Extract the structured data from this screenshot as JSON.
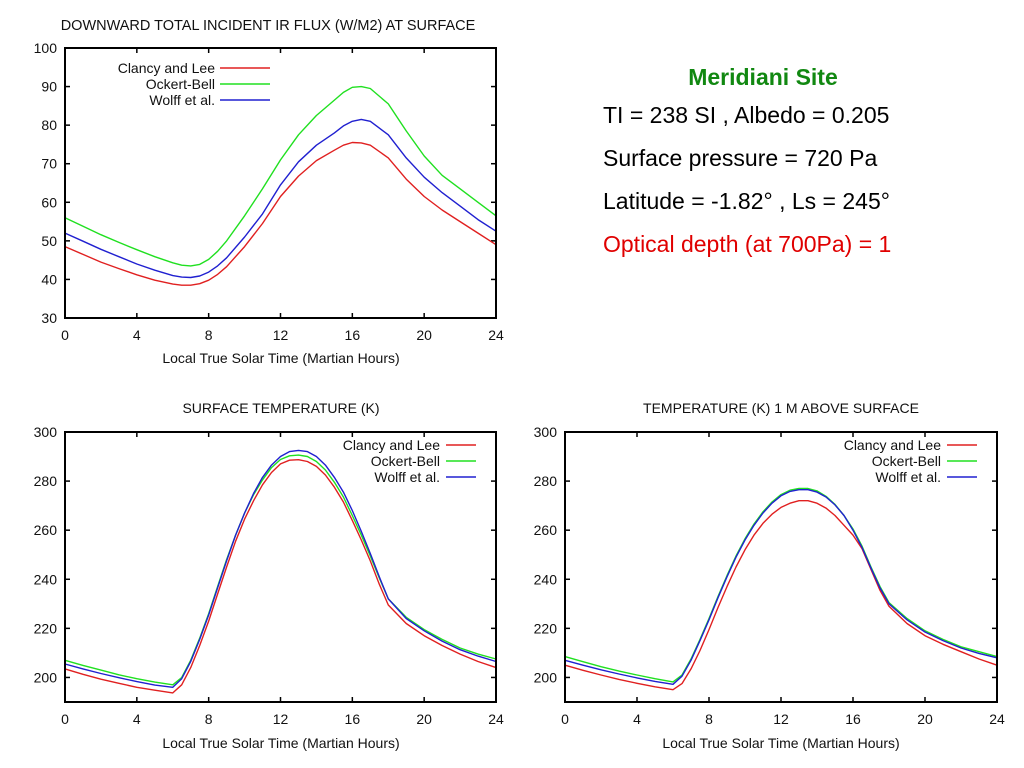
{
  "info_panel": {
    "site_name": "Meridiani Site",
    "lines": [
      "TI = 238 SI , Albedo = 0.205",
      "Surface pressure = 720 Pa",
      "Latitude = -1.82° , Ls = 245°",
      "Optical depth (at 700Pa) = 1"
    ],
    "colors": {
      "site": "#118811",
      "optical_depth": "#e00000",
      "text": "#000000"
    }
  },
  "chart_data": [
    {
      "id": "ir-flux",
      "type": "line",
      "title": "DOWNWARD TOTAL INCIDENT IR FLUX (W/M2) AT SURFACE",
      "xlabel": "Local True Solar Time (Martian Hours)",
      "ylabel": "",
      "xlim": [
        0,
        24
      ],
      "ylim": [
        30,
        100
      ],
      "xticks": [
        0,
        4,
        8,
        12,
        16,
        20,
        24
      ],
      "yticks": [
        30,
        40,
        50,
        60,
        70,
        80,
        90,
        100
      ],
      "grid": false,
      "legend_position": "top-left",
      "x": [
        0,
        1,
        2,
        3,
        4,
        5,
        6,
        6.5,
        7,
        7.5,
        8,
        8.5,
        9,
        10,
        11,
        12,
        13,
        14,
        15,
        15.5,
        16,
        16.5,
        17,
        18,
        19,
        20,
        21,
        22,
        23,
        24
      ],
      "series": [
        {
          "name": "Clancy and Lee",
          "color": "#e02020",
          "values": [
            48.5,
            46.5,
            44.5,
            42.8,
            41.2,
            39.8,
            38.8,
            38.5,
            38.5,
            38.9,
            39.8,
            41.3,
            43.3,
            48.5,
            54.5,
            61.5,
            66.8,
            70.8,
            73.5,
            74.8,
            75.5,
            75.4,
            74.8,
            71.5,
            66.0,
            61.5,
            58.0,
            55.0,
            52.0,
            49.0
          ]
        },
        {
          "name": "Ockert-Bell",
          "color": "#20e020",
          "values": [
            56.0,
            53.8,
            51.6,
            49.6,
            47.7,
            45.9,
            44.3,
            43.7,
            43.5,
            43.9,
            45.2,
            47.3,
            50.0,
            56.5,
            63.5,
            71.0,
            77.5,
            82.5,
            86.5,
            88.5,
            89.8,
            90.0,
            89.5,
            85.5,
            78.5,
            72.0,
            67.0,
            63.5,
            60.0,
            56.5
          ]
        },
        {
          "name": "Wolff et al.",
          "color": "#2020d0",
          "values": [
            52.0,
            49.9,
            47.8,
            45.9,
            44.0,
            42.4,
            41.0,
            40.6,
            40.5,
            40.9,
            41.9,
            43.5,
            45.6,
            51.0,
            57.0,
            64.5,
            70.5,
            74.8,
            78.0,
            79.8,
            81.0,
            81.5,
            81.0,
            77.5,
            71.5,
            66.5,
            62.5,
            59.0,
            55.5,
            52.5
          ]
        }
      ]
    },
    {
      "id": "surface-temp",
      "type": "line",
      "title": "SURFACE TEMPERATURE (K)",
      "xlabel": "Local True Solar Time (Martian Hours)",
      "ylabel": "",
      "xlim": [
        0,
        24
      ],
      "ylim": [
        190,
        300
      ],
      "xticks": [
        0,
        4,
        8,
        12,
        16,
        20,
        24
      ],
      "yticks": [
        200,
        220,
        240,
        260,
        280,
        300
      ],
      "grid": false,
      "legend_position": "top-right",
      "x": [
        0,
        1,
        2,
        3,
        4,
        5,
        6,
        6.5,
        7,
        7.5,
        8,
        8.5,
        9,
        9.5,
        10,
        10.5,
        11,
        11.5,
        12,
        12.5,
        13,
        13.5,
        14,
        14.5,
        15,
        15.5,
        16,
        16.5,
        17,
        17.5,
        18,
        19,
        20,
        21,
        22,
        23,
        24
      ],
      "series": [
        {
          "name": "Clancy and Lee",
          "color": "#e02020",
          "values": [
            203.5,
            201.3,
            199.3,
            197.6,
            196.0,
            194.8,
            193.7,
            197.0,
            204.0,
            213.0,
            223.0,
            234.0,
            245.0,
            255.5,
            264.5,
            272.0,
            278.5,
            283.5,
            287.0,
            288.5,
            288.7,
            288.0,
            286.0,
            282.5,
            277.5,
            271.5,
            264.0,
            256.0,
            247.5,
            238.0,
            229.5,
            222.0,
            217.0,
            213.0,
            209.5,
            206.5,
            204.0
          ]
        },
        {
          "name": "Ockert-Bell",
          "color": "#20e020",
          "values": [
            207.0,
            204.9,
            203.0,
            201.1,
            199.5,
            198.1,
            197.0,
            200.0,
            207.0,
            216.0,
            226.0,
            237.0,
            248.0,
            258.0,
            267.0,
            274.5,
            280.5,
            285.5,
            288.8,
            290.3,
            290.6,
            290.0,
            288.0,
            284.5,
            279.5,
            273.5,
            266.0,
            258.0,
            249.5,
            240.5,
            232.0,
            224.5,
            219.5,
            215.5,
            212.0,
            209.5,
            207.5
          ]
        },
        {
          "name": "Wolff et al.",
          "color": "#2020d0",
          "values": [
            205.5,
            203.5,
            201.6,
            199.9,
            198.3,
            196.9,
            196.0,
            199.5,
            206.5,
            215.5,
            225.5,
            236.5,
            247.5,
            258.0,
            267.0,
            275.0,
            281.5,
            286.5,
            290.0,
            292.0,
            292.5,
            292.0,
            290.0,
            286.5,
            281.5,
            275.5,
            268.0,
            259.5,
            250.5,
            241.0,
            232.0,
            224.0,
            219.0,
            214.8,
            211.3,
            208.7,
            206.5
          ]
        }
      ]
    },
    {
      "id": "temp-1m",
      "type": "line",
      "title": "TEMPERATURE (K) 1 M ABOVE SURFACE",
      "xlabel": "Local True Solar Time (Martian Hours)",
      "ylabel": "",
      "xlim": [
        0,
        24
      ],
      "ylim": [
        190,
        300
      ],
      "xticks": [
        0,
        4,
        8,
        12,
        16,
        20,
        24
      ],
      "yticks": [
        200,
        220,
        240,
        260,
        280,
        300
      ],
      "grid": false,
      "legend_position": "top-right",
      "x": [
        0,
        1,
        2,
        3,
        4,
        5,
        6,
        6.5,
        7,
        7.5,
        8,
        8.5,
        9,
        9.5,
        10,
        10.5,
        11,
        11.5,
        12,
        12.5,
        13,
        13.5,
        14,
        14.5,
        15,
        15.5,
        16,
        16.5,
        17,
        17.5,
        18,
        19,
        20,
        21,
        22,
        23,
        24
      ],
      "series": [
        {
          "name": "Clancy and Lee",
          "color": "#e02020",
          "values": [
            205.0,
            202.9,
            201.0,
            199.2,
            197.6,
            196.2,
            195.0,
            197.5,
            203.5,
            211.0,
            219.5,
            228.5,
            237.0,
            245.0,
            252.0,
            258.0,
            262.8,
            266.5,
            269.3,
            271.0,
            272.0,
            272.0,
            271.0,
            269.0,
            266.0,
            262.0,
            258.0,
            252.5,
            244.0,
            235.5,
            229.0,
            222.0,
            217.0,
            213.5,
            210.5,
            207.5,
            205.0
          ]
        },
        {
          "name": "Ockert-Bell",
          "color": "#20e020",
          "values": [
            208.5,
            206.4,
            204.4,
            202.6,
            201.0,
            199.5,
            198.2,
            201.0,
            207.5,
            215.5,
            224.0,
            233.0,
            241.5,
            249.5,
            256.5,
            262.5,
            267.5,
            271.5,
            274.5,
            276.3,
            277.0,
            277.0,
            276.0,
            273.8,
            270.5,
            266.0,
            260.5,
            253.5,
            245.0,
            237.0,
            230.5,
            224.0,
            219.0,
            215.5,
            212.5,
            210.5,
            208.5
          ]
        },
        {
          "name": "Wolff et al.",
          "color": "#2020d0",
          "values": [
            207.0,
            205.0,
            203.1,
            201.4,
            199.8,
            198.4,
            197.2,
            200.5,
            207.0,
            215.0,
            223.5,
            232.5,
            241.0,
            249.0,
            256.0,
            262.0,
            267.0,
            271.0,
            274.0,
            275.8,
            276.5,
            276.5,
            275.5,
            273.5,
            270.3,
            266.0,
            260.0,
            253.0,
            244.5,
            236.5,
            230.0,
            223.5,
            218.5,
            215.0,
            212.0,
            209.8,
            208.0
          ]
        }
      ]
    }
  ]
}
